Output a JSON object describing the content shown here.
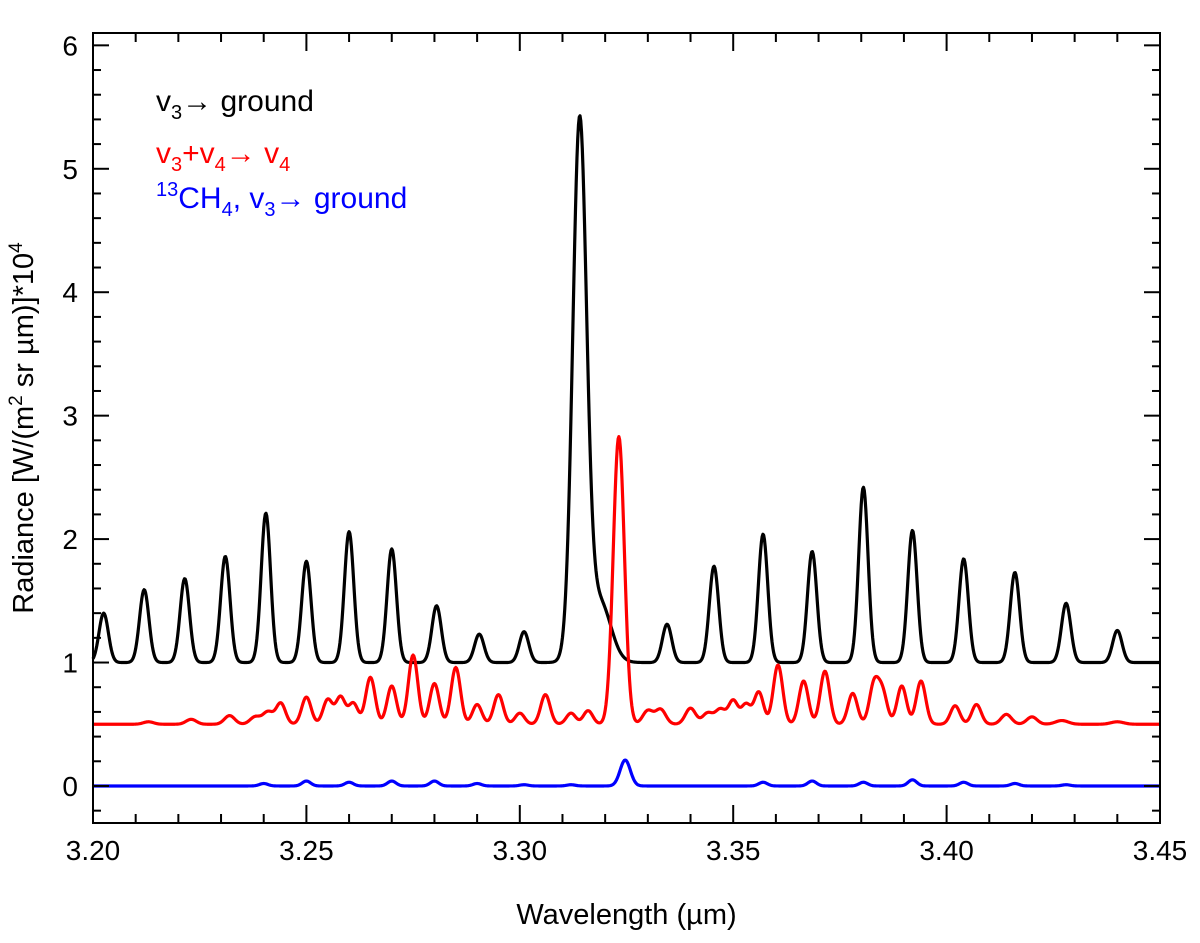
{
  "chart_data": {
    "type": "line",
    "title": "",
    "xlabel": "Wavelength (µm)",
    "ylabel": {
      "main": "Radiance [W/(m",
      "sup1": "2",
      "mid": " sr µm)]*10",
      "sup2": "4"
    },
    "xlim": [
      3.2,
      3.45
    ],
    "ylim": [
      -0.3,
      6.1
    ],
    "x_ticks": [
      3.2,
      3.25,
      3.3,
      3.35,
      3.4,
      3.45
    ],
    "x_tick_labels": [
      "3.20",
      "3.25",
      "3.30",
      "3.35",
      "3.40",
      "3.45"
    ],
    "y_ticks": [
      0,
      1,
      2,
      3,
      4,
      5,
      6
    ],
    "y_tick_labels": [
      "0",
      "1",
      "2",
      "3",
      "4",
      "5",
      "6"
    ],
    "grid": false,
    "legend": {
      "placement": "top-left",
      "entries": [
        {
          "color": "#000000",
          "parts": [
            [
              "v",
              ""
            ],
            [
              "3",
              "sub"
            ],
            [
              "→ ground",
              ""
            ]
          ]
        },
        {
          "color": "#ff0000",
          "parts": [
            [
              "v",
              ""
            ],
            [
              "3",
              "sub"
            ],
            [
              "+v",
              ""
            ],
            [
              "4",
              "sub"
            ],
            [
              "→ v",
              ""
            ],
            [
              "4",
              "sub"
            ]
          ]
        },
        {
          "color": "#0000ff",
          "parts": [
            [
              "13",
              "sup"
            ],
            [
              "CH",
              ""
            ],
            [
              "4",
              "sub"
            ],
            [
              ", v",
              ""
            ],
            [
              "3",
              "sub"
            ],
            [
              "→ ground",
              ""
            ]
          ]
        }
      ]
    },
    "series": [
      {
        "name": "v3 → ground",
        "color": "#000000",
        "baseline": 1.0,
        "peaks": [
          [
            3.2025,
            0.4,
            0.0011
          ],
          [
            3.212,
            0.59,
            0.0011
          ],
          [
            3.2215,
            0.68,
            0.0011
          ],
          [
            3.231,
            0.86,
            0.0011
          ],
          [
            3.2405,
            1.21,
            0.0011
          ],
          [
            3.25,
            0.82,
            0.0011
          ],
          [
            3.26,
            1.06,
            0.0011
          ],
          [
            3.27,
            0.92,
            0.0011
          ],
          [
            3.2805,
            0.46,
            0.0011
          ],
          [
            3.2905,
            0.23,
            0.0011
          ],
          [
            3.301,
            0.25,
            0.0011
          ],
          [
            3.314,
            4.2,
            0.0016
          ],
          [
            3.3175,
            0.45,
            0.003
          ],
          [
            3.32,
            0.12,
            0.002
          ],
          [
            3.3345,
            0.31,
            0.0011
          ],
          [
            3.3455,
            0.78,
            0.0011
          ],
          [
            3.357,
            1.04,
            0.0011
          ],
          [
            3.3685,
            0.9,
            0.0011
          ],
          [
            3.3805,
            1.42,
            0.0011
          ],
          [
            3.392,
            1.07,
            0.0011
          ],
          [
            3.404,
            0.84,
            0.0011
          ],
          [
            3.416,
            0.73,
            0.0011
          ],
          [
            3.428,
            0.48,
            0.0011
          ],
          [
            3.44,
            0.26,
            0.0011
          ]
        ]
      },
      {
        "name": "v3+v4 → v4",
        "color": "#ff0000",
        "baseline": 0.5,
        "peaks": [
          [
            3.213,
            0.02,
            0.0012
          ],
          [
            3.223,
            0.04,
            0.0012
          ],
          [
            3.232,
            0.07,
            0.0012
          ],
          [
            3.238,
            0.06,
            0.0012
          ],
          [
            3.241,
            0.1,
            0.0012
          ],
          [
            3.244,
            0.17,
            0.0011
          ],
          [
            3.25,
            0.22,
            0.0011
          ],
          [
            3.255,
            0.2,
            0.0011
          ],
          [
            3.258,
            0.22,
            0.0011
          ],
          [
            3.261,
            0.17,
            0.0011
          ],
          [
            3.265,
            0.38,
            0.0011
          ],
          [
            3.27,
            0.31,
            0.0011
          ],
          [
            3.275,
            0.56,
            0.0011
          ],
          [
            3.28,
            0.33,
            0.0011
          ],
          [
            3.285,
            0.46,
            0.0011
          ],
          [
            3.29,
            0.16,
            0.0011
          ],
          [
            3.295,
            0.24,
            0.0011
          ],
          [
            3.3,
            0.09,
            0.0011
          ],
          [
            3.306,
            0.24,
            0.0011
          ],
          [
            3.312,
            0.09,
            0.0011
          ],
          [
            3.316,
            0.11,
            0.0011
          ],
          [
            3.3232,
            2.33,
            0.0013
          ],
          [
            3.33,
            0.11,
            0.0012
          ],
          [
            3.333,
            0.12,
            0.0012
          ],
          [
            3.34,
            0.13,
            0.0012
          ],
          [
            3.344,
            0.09,
            0.0012
          ],
          [
            3.347,
            0.12,
            0.0012
          ],
          [
            3.35,
            0.19,
            0.0011
          ],
          [
            3.353,
            0.16,
            0.0011
          ],
          [
            3.356,
            0.26,
            0.0011
          ],
          [
            3.3605,
            0.48,
            0.0011
          ],
          [
            3.3665,
            0.35,
            0.0011
          ],
          [
            3.3715,
            0.43,
            0.0011
          ],
          [
            3.378,
            0.25,
            0.0011
          ],
          [
            3.383,
            0.32,
            0.0011
          ],
          [
            3.385,
            0.25,
            0.0011
          ],
          [
            3.3895,
            0.31,
            0.0011
          ],
          [
            3.394,
            0.35,
            0.0011
          ],
          [
            3.402,
            0.15,
            0.0011
          ],
          [
            3.407,
            0.16,
            0.0011
          ],
          [
            3.414,
            0.08,
            0.0012
          ],
          [
            3.42,
            0.06,
            0.0012
          ],
          [
            3.427,
            0.03,
            0.0015
          ],
          [
            3.44,
            0.02,
            0.0015
          ]
        ]
      },
      {
        "name": "13CH4, v3 → ground",
        "color": "#0000ff",
        "baseline": 0.0,
        "peaks": [
          [
            3.24,
            0.02,
            0.001
          ],
          [
            3.25,
            0.04,
            0.001
          ],
          [
            3.26,
            0.03,
            0.001
          ],
          [
            3.27,
            0.04,
            0.001
          ],
          [
            3.28,
            0.04,
            0.001
          ],
          [
            3.29,
            0.02,
            0.001
          ],
          [
            3.301,
            0.01,
            0.001
          ],
          [
            3.312,
            0.01,
            0.001
          ],
          [
            3.3247,
            0.21,
            0.0012
          ],
          [
            3.357,
            0.03,
            0.001
          ],
          [
            3.3685,
            0.04,
            0.001
          ],
          [
            3.3805,
            0.03,
            0.001
          ],
          [
            3.392,
            0.05,
            0.001
          ],
          [
            3.404,
            0.03,
            0.001
          ],
          [
            3.416,
            0.02,
            0.001
          ],
          [
            3.428,
            0.01,
            0.001
          ]
        ]
      }
    ]
  }
}
